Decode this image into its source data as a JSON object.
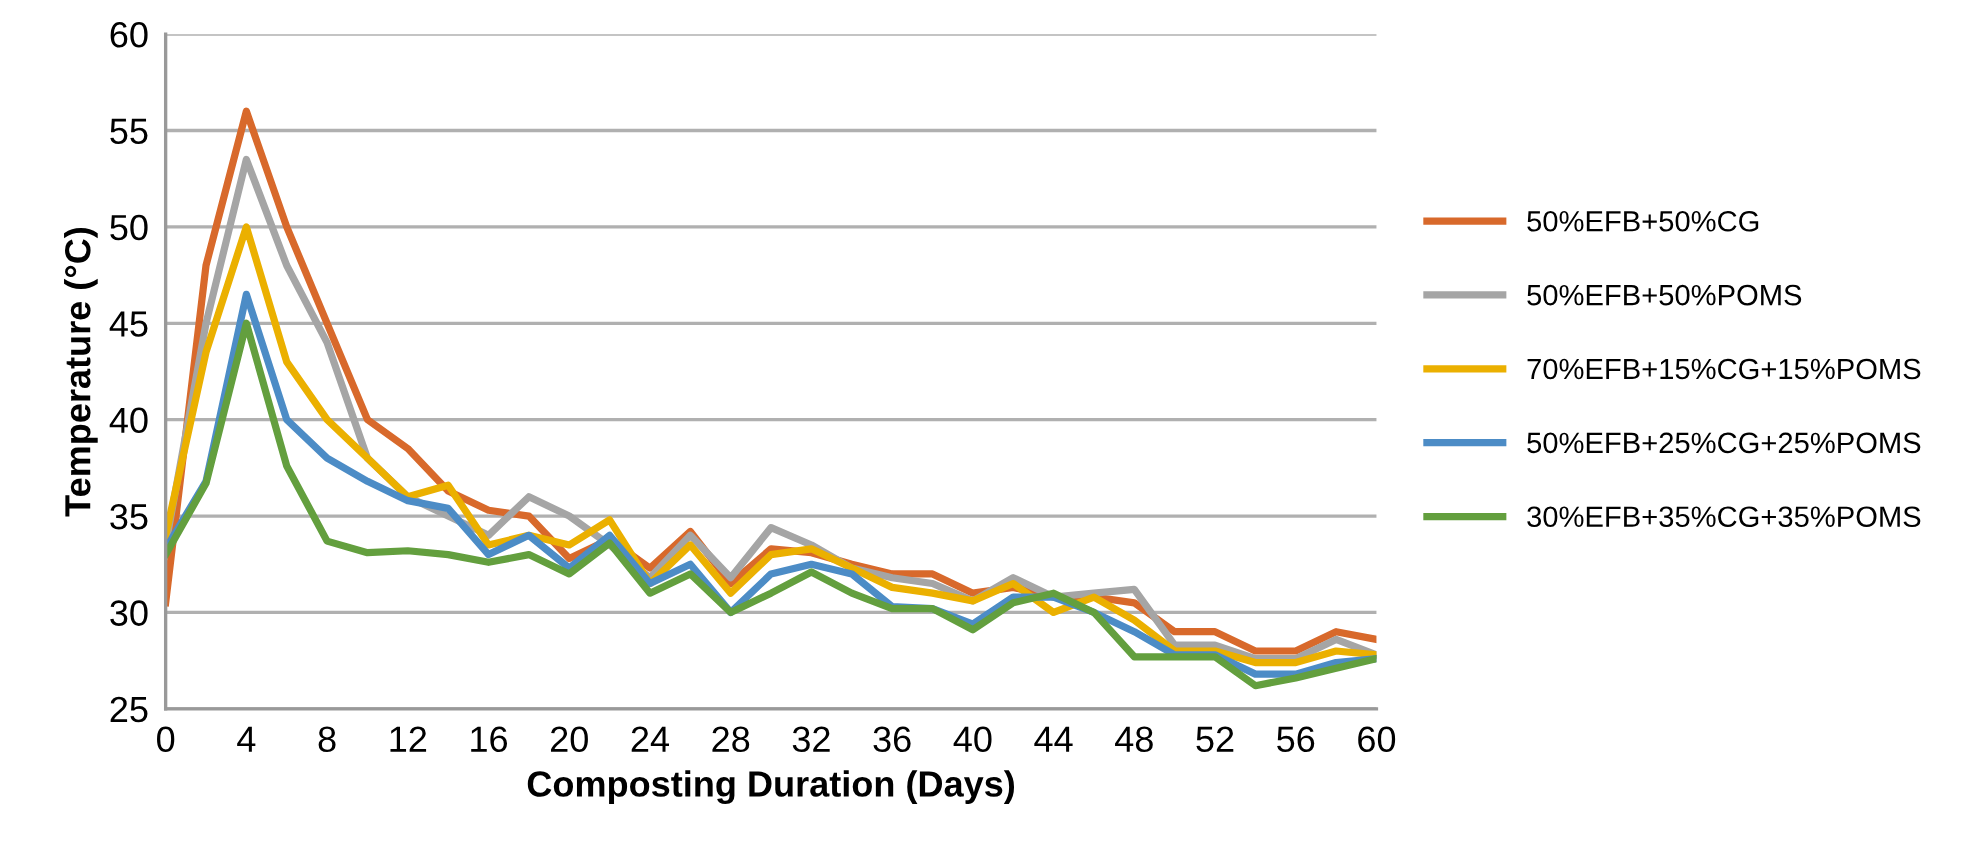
{
  "chart_data": {
    "type": "line",
    "xlabel": "Composting Duration (Days)",
    "ylabel": "Temperature (°C)",
    "x": [
      0,
      2,
      4,
      6,
      8,
      10,
      12,
      14,
      16,
      18,
      20,
      22,
      24,
      26,
      28,
      30,
      32,
      34,
      36,
      38,
      40,
      42,
      44,
      46,
      48,
      50,
      52,
      54,
      56,
      58,
      60
    ],
    "series": [
      {
        "name": "50%EFB+50%CG",
        "color": "#d8692b",
        "values": [
          30.5,
          48,
          56,
          50,
          45,
          40,
          38.5,
          36.3,
          35.3,
          35,
          32.8,
          33.8,
          32.3,
          34.2,
          31.5,
          33.3,
          33.1,
          32.5,
          32,
          32,
          31,
          31.3,
          30.8,
          30.8,
          30.5,
          29,
          29,
          28,
          28,
          29,
          28.6
        ]
      },
      {
        "name": "50%EFB+50%POMS",
        "color": "#a5a5a5",
        "values": [
          33.5,
          45,
          53.5,
          48,
          44,
          38,
          36,
          35,
          34,
          36,
          35,
          33.5,
          31.8,
          34,
          31.8,
          34.4,
          33.5,
          32.3,
          31.8,
          31.5,
          30.6,
          31.8,
          30.8,
          31,
          31.2,
          28.3,
          28.3,
          27.6,
          27.6,
          28.6,
          27.8
        ]
      },
      {
        "name": "70%EFB+15%CG+15%POMS",
        "color": "#ebb000",
        "values": [
          34,
          43.5,
          50,
          43,
          40,
          38,
          36,
          36.6,
          33.5,
          34,
          33.5,
          34.8,
          31.5,
          33.5,
          31,
          33,
          33.3,
          32.3,
          31.3,
          31,
          30.6,
          31.5,
          30,
          30.8,
          29.6,
          28,
          28,
          27.4,
          27.4,
          28,
          27.8
        ]
      },
      {
        "name": "50%EFB+25%CG+25%POMS",
        "color": "#4c8cc6",
        "values": [
          33.3,
          36.8,
          46.5,
          40,
          38,
          36.8,
          35.8,
          35.4,
          33,
          34,
          32.3,
          34,
          31.5,
          32.5,
          30,
          32,
          32.5,
          32,
          30.3,
          30.2,
          29.4,
          30.8,
          30.8,
          30,
          29,
          27.8,
          27.8,
          26.8,
          26.8,
          27.4,
          27.6
        ]
      },
      {
        "name": "30%EFB+35%CG+35%POMS",
        "color": "#639f3e",
        "values": [
          33,
          36.7,
          45,
          37.6,
          33.7,
          33.1,
          33.2,
          33,
          32.6,
          33,
          32,
          33.6,
          31,
          32,
          30,
          31,
          32.1,
          31,
          30.2,
          30.2,
          29.1,
          30.5,
          31,
          30,
          27.7,
          27.7,
          27.7,
          26.2,
          26.6,
          27.1,
          27.6
        ]
      }
    ],
    "xlim": [
      0,
      60
    ],
    "xticks": [
      0,
      4,
      8,
      12,
      16,
      20,
      24,
      28,
      32,
      36,
      40,
      44,
      48,
      52,
      56,
      60
    ],
    "ylim": [
      25,
      60
    ],
    "yticks": [
      25,
      30,
      35,
      40,
      45,
      50,
      55,
      60
    ],
    "grid": "y",
    "legend": "right",
    "marker": "none",
    "line_style": "solid"
  }
}
